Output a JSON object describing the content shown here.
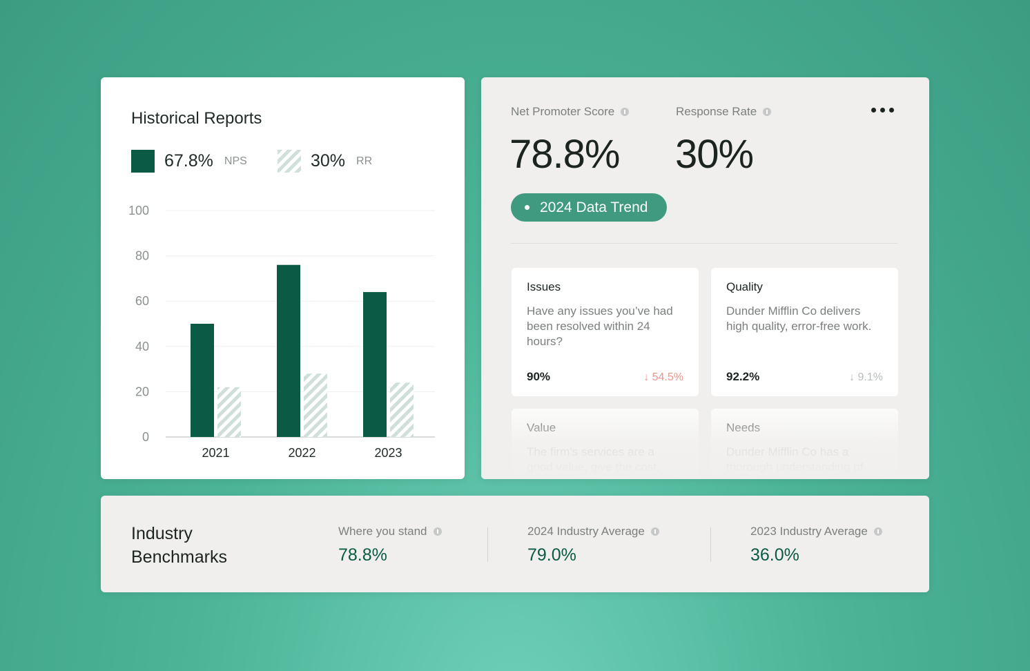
{
  "historical": {
    "title": "Historical Reports",
    "legend": [
      {
        "value": "67.8%",
        "label": "NPS"
      },
      {
        "value": "30%",
        "label": "RR"
      }
    ]
  },
  "chart_data": {
    "type": "bar",
    "categories": [
      "2021",
      "2022",
      "2023"
    ],
    "series": [
      {
        "name": "NPS",
        "values": [
          50,
          76,
          64
        ]
      },
      {
        "name": "RR",
        "values": [
          22,
          28,
          24
        ]
      }
    ],
    "yticks": [
      0,
      20,
      40,
      60,
      80,
      100
    ],
    "ylim": [
      0,
      100
    ],
    "colors": {
      "NPS": "#0b5a45",
      "RR": "#cfe0da"
    },
    "grid": true
  },
  "score": {
    "nps_label": "Net Promoter Score",
    "nps_value": "78.8%",
    "rr_label": "Response Rate",
    "rr_value": "30%",
    "trend_button": "2024 Data Trend",
    "menu_icon": "more-horizontal-icon",
    "cards": [
      {
        "title": "Issues",
        "text": "Have any issues you’ve had been resolved within 24 hours?",
        "value": "90%",
        "delta": "↓ 54.5%",
        "delta_color": "#e8978b"
      },
      {
        "title": "Quality",
        "text": "Dunder Mifflin Co delivers high quality, error-free work.",
        "value": "92.2%",
        "delta": "↓ 9.1%",
        "delta_color": "#b8bcba"
      },
      {
        "title": "Value",
        "text": "The firm’s services are a good value, give the cost.",
        "value": "",
        "delta": ""
      },
      {
        "title": "Needs",
        "text": "Dunder Mifflin Co has a thorough understanding of",
        "value": "",
        "delta": ""
      }
    ]
  },
  "benchmarks": {
    "title": "Industry Benchmarks",
    "items": [
      {
        "label": "Where you stand",
        "value": "78.8%"
      },
      {
        "label": "2024 Industry Average",
        "value": "79.0%"
      },
      {
        "label": "2023 Industry Average",
        "value": "36.0%"
      }
    ]
  }
}
